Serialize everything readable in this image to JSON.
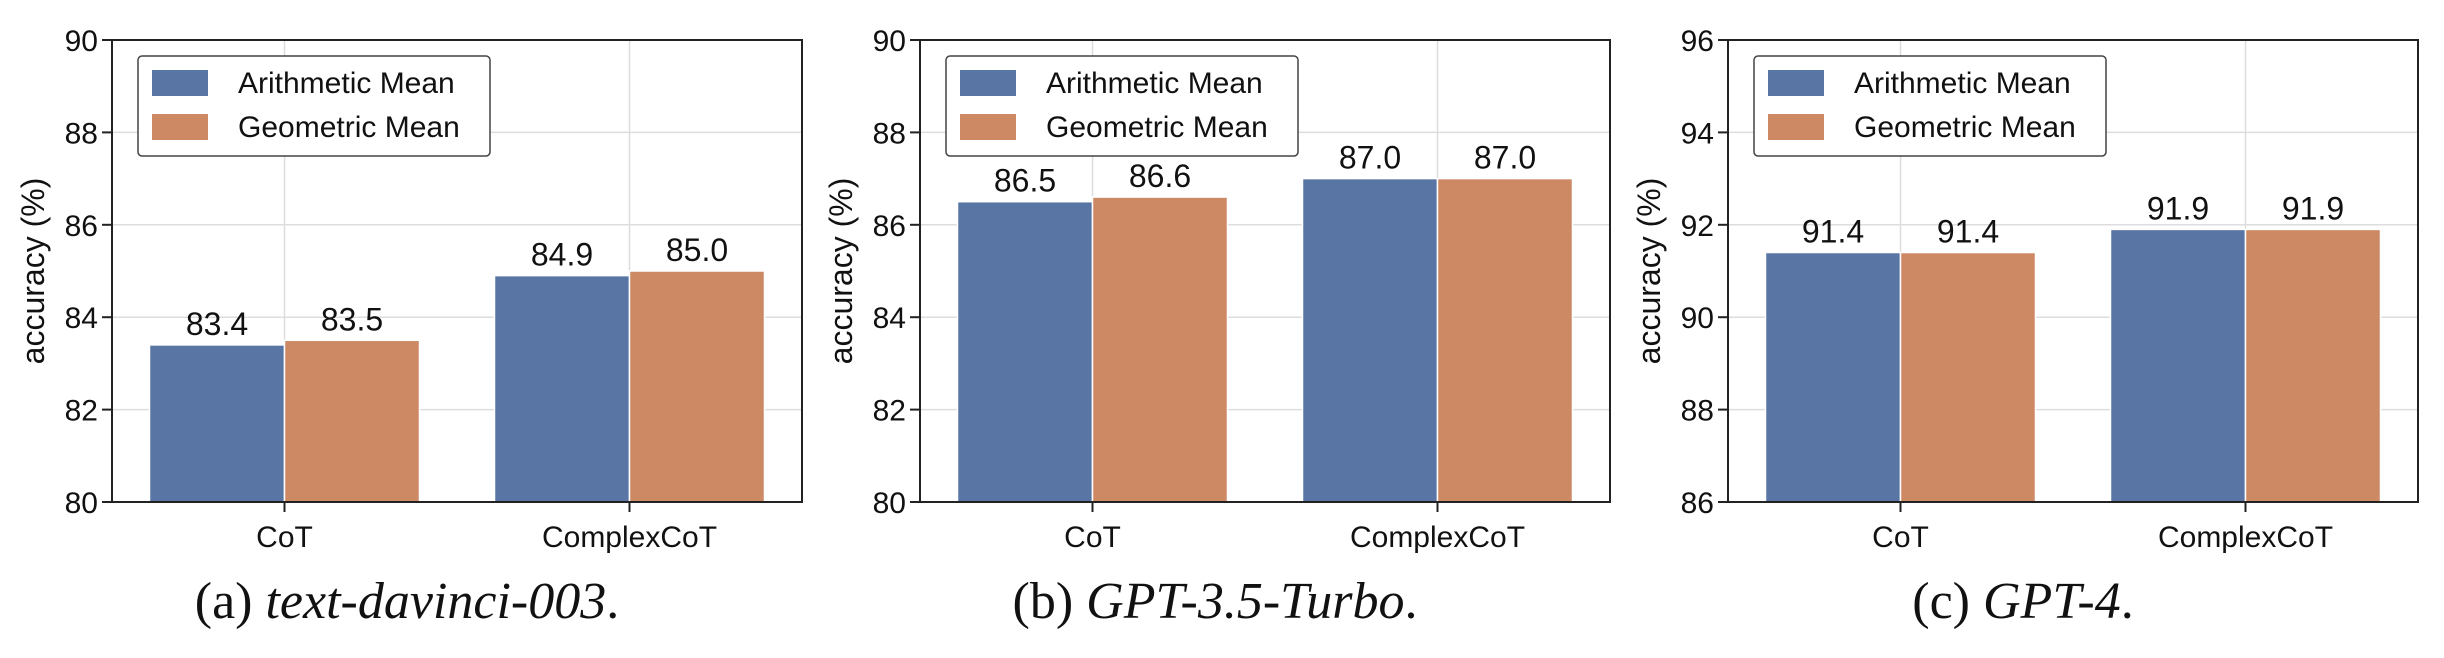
{
  "colors": {
    "arithmetic": "#5875a4",
    "geometric": "#cc8963",
    "grid": "#dddddd",
    "axis": "#222222",
    "text": "#111111"
  },
  "chart_data": [
    {
      "type": "bar",
      "panel_id": "a",
      "caption": {
        "prefix": "(a)",
        "name": "text-davinci-003",
        "suffix": "."
      },
      "categories": [
        "CoT",
        "ComplexCoT"
      ],
      "series": [
        {
          "name": "Arithmetic Mean",
          "values": [
            83.4,
            84.9
          ]
        },
        {
          "name": "Geometric Mean",
          "values": [
            83.5,
            85.0
          ]
        }
      ],
      "data_labels": [
        [
          "83.4",
          "84.9"
        ],
        [
          "83.5",
          "85.0"
        ]
      ],
      "ylabel": "accuracy (%)",
      "ylim": [
        80,
        90
      ],
      "yticks": [
        80,
        82,
        84,
        86,
        88,
        90
      ],
      "ytick_labels": [
        "80",
        "82",
        "84",
        "86",
        "88",
        "90"
      ],
      "grid": true,
      "legend": "top-left"
    },
    {
      "type": "bar",
      "panel_id": "b",
      "caption": {
        "prefix": "(b)",
        "name": "GPT-3.5-Turbo",
        "suffix": "."
      },
      "categories": [
        "CoT",
        "ComplexCoT"
      ],
      "series": [
        {
          "name": "Arithmetic Mean",
          "values": [
            86.5,
            87.0
          ]
        },
        {
          "name": "Geometric Mean",
          "values": [
            86.6,
            87.0
          ]
        }
      ],
      "data_labels": [
        [
          "86.5",
          "87.0"
        ],
        [
          "86.6",
          "87.0"
        ]
      ],
      "ylabel": "accuracy (%)",
      "ylim": [
        80,
        90
      ],
      "yticks": [
        80,
        82,
        84,
        86,
        88,
        90
      ],
      "ytick_labels": [
        "80",
        "82",
        "84",
        "86",
        "88",
        "90"
      ],
      "grid": true,
      "legend": "top-left"
    },
    {
      "type": "bar",
      "panel_id": "c",
      "caption": {
        "prefix": "(c)",
        "name": "GPT-4",
        "suffix": "."
      },
      "categories": [
        "CoT",
        "ComplexCoT"
      ],
      "series": [
        {
          "name": "Arithmetic Mean",
          "values": [
            91.4,
            91.9
          ]
        },
        {
          "name": "Geometric Mean",
          "values": [
            91.4,
            91.9
          ]
        }
      ],
      "data_labels": [
        [
          "91.4",
          "91.9"
        ],
        [
          "91.4",
          "91.9"
        ]
      ],
      "ylabel": "accuracy (%)",
      "ylim": [
        86,
        96
      ],
      "yticks": [
        86,
        88,
        90,
        92,
        94,
        96
      ],
      "ytick_labels": [
        "86",
        "88",
        "90",
        "92",
        "94",
        "96"
      ],
      "grid": true,
      "legend": "top-left"
    }
  ]
}
